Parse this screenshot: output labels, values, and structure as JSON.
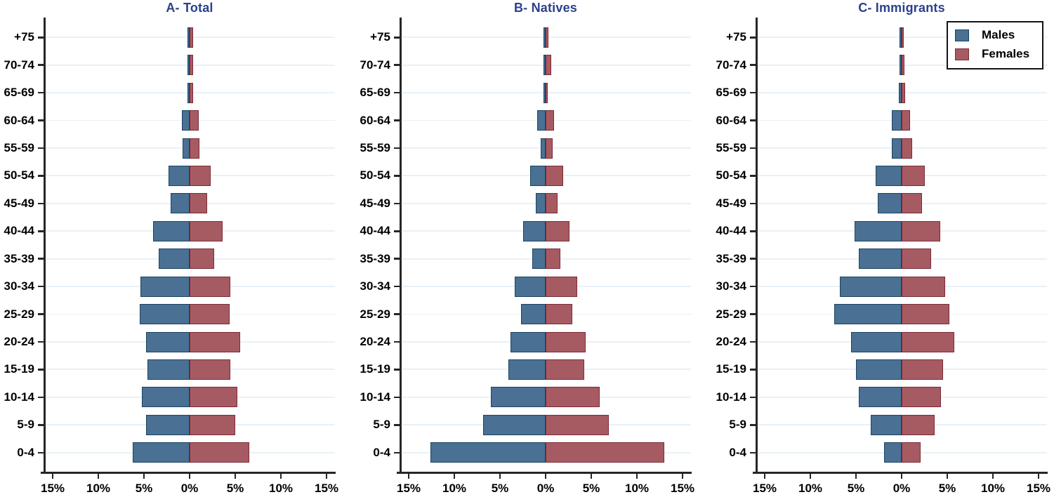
{
  "colors": {
    "males_fill": "#4a7094",
    "males_border": "#1b4460",
    "females_fill": "#a65b63",
    "females_border": "#7d2b38",
    "title_color": "#2b418c",
    "axis": "#262626",
    "gridline": "#e8f1f7",
    "background": "#ffffff",
    "legend_border": "#141414"
  },
  "legend": {
    "position": "top-right-of-panel-C",
    "items": [
      {
        "label": "Males",
        "swatch": "males-color-square"
      },
      {
        "label": "Females",
        "swatch": "females-color-square"
      }
    ]
  },
  "chart_data": [
    {
      "type": "bar",
      "subtype": "population-pyramid",
      "title": "A- Total",
      "units": "%",
      "grid": true,
      "legend": false,
      "categories": [
        "+75",
        "70-74",
        "65-69",
        "60-64",
        "55-59",
        "50-54",
        "45-49",
        "40-44",
        "35-39",
        "30-34",
        "25-29",
        "20-24",
        "15-19",
        "10-14",
        "5-9",
        "0-4"
      ],
      "series": [
        {
          "name": "Males",
          "side": "left",
          "values": [
            0.2,
            0.1,
            0.1,
            0.85,
            0.75,
            2.3,
            2.05,
            4.0,
            3.35,
            5.35,
            5.5,
            4.8,
            4.65,
            5.2,
            4.8,
            6.2
          ]
        },
        {
          "name": "Females",
          "side": "right",
          "values": [
            0.35,
            0.4,
            0.4,
            1.0,
            1.1,
            2.3,
            1.95,
            3.6,
            2.7,
            4.45,
            4.4,
            5.5,
            4.45,
            5.2,
            5.0,
            6.5
          ]
        }
      ],
      "x_axis": {
        "range": [
          -16,
          16
        ],
        "tick_values": [
          -15,
          -10,
          -5,
          0,
          5,
          10,
          15
        ],
        "tick_labels": [
          "15%",
          "10%",
          "5%",
          "0%",
          "5%",
          "10%",
          "15%"
        ]
      }
    },
    {
      "type": "bar",
      "subtype": "population-pyramid",
      "title": "B- Natives",
      "units": "%",
      "grid": true,
      "legend": false,
      "categories": [
        "+75",
        "70-74",
        "65-69",
        "60-64",
        "55-59",
        "50-54",
        "45-49",
        "40-44",
        "35-39",
        "30-34",
        "25-29",
        "20-24",
        "15-19",
        "10-14",
        "5-9",
        "0-4"
      ],
      "series": [
        {
          "name": "Males",
          "side": "left",
          "values": [
            0.15,
            0.1,
            0.05,
            0.9,
            0.55,
            1.7,
            1.05,
            2.5,
            1.5,
            3.35,
            2.7,
            3.85,
            4.1,
            6.0,
            6.85,
            12.65
          ]
        },
        {
          "name": "Females",
          "side": "right",
          "values": [
            0.3,
            0.6,
            0.15,
            0.9,
            0.75,
            1.9,
            1.3,
            2.6,
            1.65,
            3.45,
            2.9,
            4.4,
            4.2,
            5.95,
            6.95,
            13.0
          ]
        }
      ],
      "x_axis": {
        "range": [
          -16,
          16
        ],
        "tick_values": [
          -15,
          -10,
          -5,
          0,
          5,
          10,
          15
        ],
        "tick_labels": [
          "15%",
          "10%",
          "5%",
          "0%",
          "5%",
          "10%",
          "15%"
        ]
      }
    },
    {
      "type": "bar",
      "subtype": "population-pyramid",
      "title": "C- Immigrants",
      "units": "%",
      "grid": true,
      "legend": true,
      "categories": [
        "+75",
        "70-74",
        "65-69",
        "60-64",
        "55-59",
        "50-54",
        "45-49",
        "40-44",
        "35-39",
        "30-34",
        "25-29",
        "20-24",
        "15-19",
        "10-14",
        "5-9",
        "0-4"
      ],
      "series": [
        {
          "name": "Males",
          "side": "left",
          "values": [
            0.1,
            0.1,
            0.3,
            1.1,
            1.05,
            2.85,
            2.65,
            5.15,
            4.7,
            6.75,
            7.35,
            5.55,
            5.0,
            4.7,
            3.4,
            1.9
          ]
        },
        {
          "name": "Females",
          "side": "right",
          "values": [
            0.1,
            0.3,
            0.35,
            0.95,
            1.15,
            2.55,
            2.2,
            4.2,
            3.2,
            4.8,
            5.2,
            5.8,
            4.5,
            4.3,
            3.6,
            2.05
          ]
        }
      ],
      "x_axis": {
        "range": [
          -16,
          16
        ],
        "tick_values": [
          -15,
          -10,
          -5,
          0,
          5,
          10,
          15
        ],
        "tick_labels": [
          "15%",
          "10%",
          "5%",
          "0%",
          "5%",
          "10%",
          "15%"
        ]
      }
    }
  ]
}
